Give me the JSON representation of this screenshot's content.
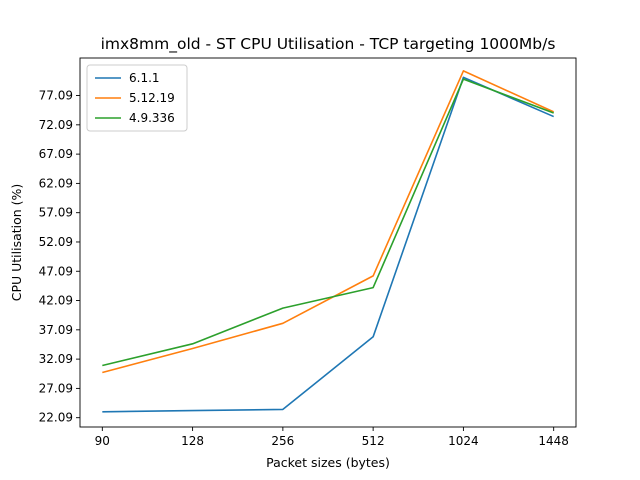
{
  "chart_data": {
    "type": "line",
    "title": "imx8mm_old - ST CPU Utilisation - TCP targeting 1000Mb/s",
    "xlabel": "Packet sizes (bytes)",
    "ylabel": "CPU Utilisation (%)",
    "categories": [
      "90",
      "128",
      "256",
      "512",
      "1024",
      "1448"
    ],
    "yticks": [
      22.09,
      27.09,
      32.09,
      37.09,
      42.09,
      47.09,
      52.09,
      57.09,
      62.09,
      67.09,
      72.09,
      77.09
    ],
    "ytick_labels": [
      "22.09",
      "27.09",
      "32.09",
      "37.09",
      "42.09",
      "47.09",
      "52.09",
      "57.09",
      "62.09",
      "67.09",
      "72.09",
      "77.09"
    ],
    "ylim": [
      20.5,
      83.5
    ],
    "grid": false,
    "legend_position": "upper-left",
    "series": [
      {
        "name": "6.1.1",
        "color": "#1f77b4",
        "values": [
          23.1,
          23.3,
          23.5,
          35.9,
          80.2,
          73.5
        ]
      },
      {
        "name": "5.12.19",
        "color": "#ff7f0e",
        "values": [
          29.8,
          33.9,
          38.2,
          46.3,
          81.3,
          74.3
        ]
      },
      {
        "name": "4.9.336",
        "color": "#2ca02c",
        "values": [
          31.0,
          34.7,
          40.8,
          44.3,
          79.9,
          74.1
        ]
      }
    ]
  }
}
